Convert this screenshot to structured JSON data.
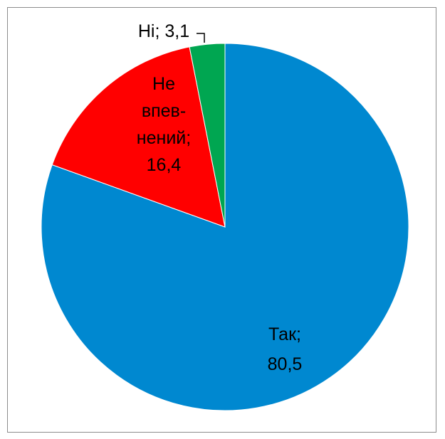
{
  "chart_data": {
    "type": "pie",
    "title": "",
    "categories": [
      "Так",
      "Не впевнений",
      "Ні"
    ],
    "values": [
      80.5,
      16.4,
      3.1
    ],
    "colors": [
      "#0088d0",
      "#ff0000",
      "#00a651"
    ],
    "start_angle_deg": 0,
    "direction": "clockwise",
    "legend": "none",
    "data_labels": [
      {
        "lines": [
          "Так;",
          "80,5"
        ]
      },
      {
        "lines": [
          "Не",
          "впев-",
          "нений;",
          "16,4"
        ]
      },
      {
        "lines": [
          "Ні; 3,1"
        ],
        "leader_line": true
      }
    ]
  }
}
